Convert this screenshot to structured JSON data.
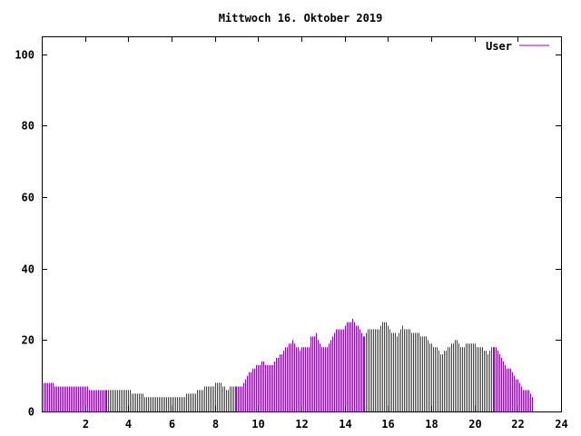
{
  "chart_data": {
    "type": "bar",
    "title": "Mittwoch 16. Oktober 2019",
    "xlabel": "",
    "ylabel": "",
    "xlim": [
      0,
      24
    ],
    "ylim": [
      0,
      105
    ],
    "x_ticks": [
      2,
      4,
      6,
      8,
      10,
      12,
      14,
      16,
      18,
      20,
      22,
      24
    ],
    "y_ticks": [
      0,
      20,
      40,
      60,
      80,
      100
    ],
    "legend_position": "top-right",
    "grid": false,
    "series": [
      {
        "name": "User",
        "color": "#9400d3",
        "x_start": 0,
        "x_step": 0.08333,
        "values": [
          8,
          8,
          8,
          8,
          8,
          8,
          8,
          7,
          7,
          7,
          7,
          7,
          7,
          7,
          7,
          7,
          7,
          7,
          7,
          7,
          7,
          7,
          7,
          7,
          7,
          7,
          6,
          6,
          6,
          6,
          6,
          6,
          6,
          6,
          6,
          6,
          6,
          6,
          6,
          6,
          6,
          6,
          6,
          6,
          6,
          6,
          6,
          6,
          6,
          6,
          5,
          5,
          5,
          5,
          5,
          5,
          5,
          4,
          4,
          4,
          4,
          4,
          4,
          4,
          4,
          4,
          4,
          4,
          4,
          4,
          4,
          4,
          4,
          4,
          4,
          4,
          4,
          4,
          4,
          4,
          5,
          5,
          5,
          5,
          5,
          5,
          6,
          6,
          6,
          6,
          7,
          7,
          7,
          7,
          7,
          7,
          8,
          8,
          8,
          8,
          7,
          7,
          6,
          6,
          7,
          7,
          7,
          7,
          7,
          7,
          7,
          7,
          8,
          9,
          10,
          11,
          11,
          12,
          12,
          13,
          13,
          13,
          14,
          14,
          13,
          13,
          13,
          13,
          13,
          14,
          15,
          15,
          16,
          16,
          17,
          18,
          18,
          19,
          19,
          20,
          19,
          18,
          18,
          17,
          18,
          18,
          18,
          18,
          18,
          21,
          21,
          21,
          22,
          20,
          19,
          18,
          18,
          18,
          18,
          19,
          20,
          21,
          22,
          23,
          23,
          23,
          23,
          23,
          24,
          25,
          25,
          25,
          26,
          25,
          24,
          24,
          23,
          22,
          21,
          21,
          22,
          23,
          23,
          23,
          23,
          23,
          23,
          23,
          24,
          25,
          25,
          25,
          24,
          23,
          22,
          22,
          22,
          21,
          22,
          23,
          24,
          23,
          23,
          23,
          23,
          22,
          22,
          22,
          22,
          22,
          21,
          21,
          21,
          21,
          20,
          19,
          19,
          18,
          18,
          18,
          17,
          16,
          16,
          17,
          17,
          18,
          18,
          19,
          19,
          20,
          20,
          19,
          18,
          18,
          18,
          19,
          19,
          19,
          19,
          19,
          19,
          18,
          18,
          18,
          18,
          17,
          17,
          16,
          17,
          18,
          18,
          18,
          18,
          17,
          16,
          15,
          14,
          13,
          12,
          12,
          12,
          11,
          10,
          9,
          9,
          8,
          7,
          6,
          6,
          6,
          6,
          5,
          4
        ]
      }
    ]
  }
}
